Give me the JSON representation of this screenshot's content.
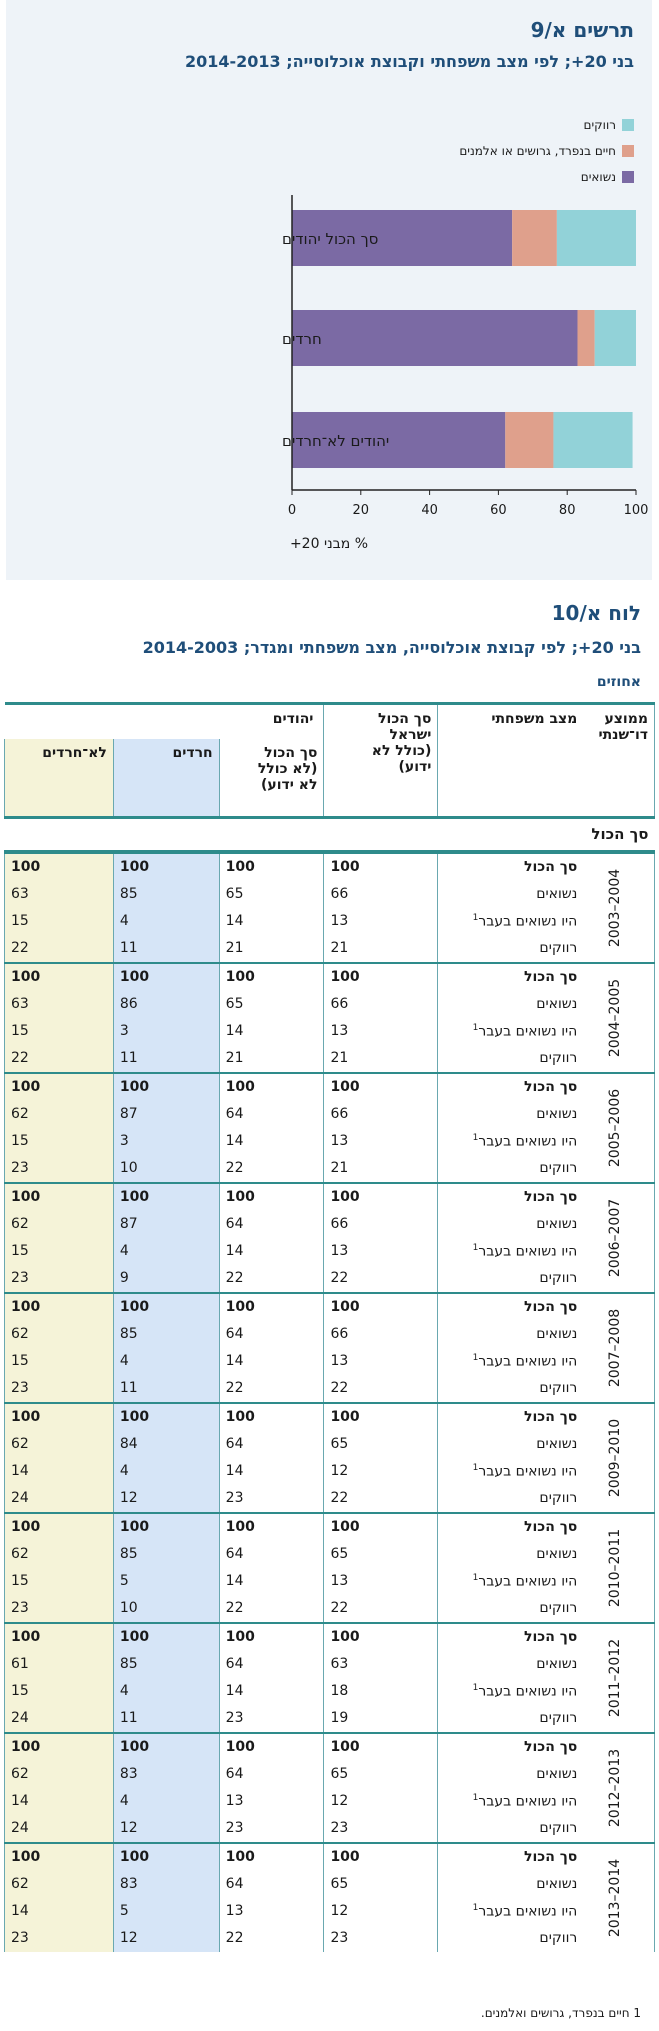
{
  "chart": {
    "title": "תרשים א/9",
    "subtitle": "בני 20+; לפי מצב משפחתי וקבוצת אוכלוסייה; 2014-2013",
    "xlabel": "% מבני 20+",
    "legend": [
      {
        "label": "רווקים",
        "color": "#92d2d8"
      },
      {
        "label": "חיים בנפרד, גרושים או אלמנים",
        "color": "#dfa08c"
      },
      {
        "label": "נשואים",
        "color": "#7b6aa4"
      }
    ]
  },
  "chart_data": {
    "type": "bar",
    "orientation": "horizontal",
    "stacked": true,
    "title": "תרשים א/9",
    "subtitle": "בני 20+; לפי מצב משפחתי וקבוצת אוכלוסייה; 2014-2013",
    "xlabel": "% מבני 20+",
    "ylabel": "",
    "xlim": [
      0,
      100
    ],
    "xticks": [
      0,
      20,
      40,
      60,
      80,
      100
    ],
    "categories": [
      "סך הכול יהודים",
      "חרדים",
      "יהודים לא־חרדים"
    ],
    "series": [
      {
        "name": "נשואים",
        "color": "#7b6aa4",
        "values": [
          64,
          83,
          62
        ]
      },
      {
        "name": "חיים בנפרד, גרושים או אלמנים",
        "color": "#dfa08c",
        "values": [
          13,
          5,
          14
        ]
      },
      {
        "name": "רווקים",
        "color": "#92d2d8",
        "values": [
          23,
          12,
          23
        ]
      }
    ],
    "legend_position": "top-right",
    "grid": false
  },
  "table": {
    "title": "לוח א/10",
    "subtitle": "בני 20+; לפי קבוצת אוכלוסייה, מצב משפחתי ומגדר; 2014-2003",
    "unit": "אחוזים",
    "headers": {
      "year": "ממוצע דו־שנתי",
      "status": "מצב משפחתי",
      "total": "סך הכול ישראל (כולל לא ידוע)",
      "jews": "יהודים",
      "jews_total": "סך הכול (לא כולל לא ידוע)",
      "haredi": "חרדים",
      "non_haredi": "לא־חרדים"
    },
    "section": "סך הכול",
    "row_labels": [
      "סך הכול",
      "נשואים",
      "היו נשואים בעבר",
      "רווקים"
    ],
    "footnote_mark": "1",
    "groups": [
      {
        "years": "2004–2003",
        "rows": [
          [
            "100",
            "100",
            "100",
            "100"
          ],
          [
            "66",
            "65",
            "85",
            "63"
          ],
          [
            "13",
            "14",
            "4",
            "15"
          ],
          [
            "21",
            "21",
            "11",
            "22"
          ]
        ]
      },
      {
        "years": "2005–2004",
        "rows": [
          [
            "100",
            "100",
            "100",
            "100"
          ],
          [
            "66",
            "65",
            "86",
            "63"
          ],
          [
            "13",
            "14",
            "3",
            "15"
          ],
          [
            "21",
            "21",
            "11",
            "22"
          ]
        ]
      },
      {
        "years": "2006–2005",
        "rows": [
          [
            "100",
            "100",
            "100",
            "100"
          ],
          [
            "66",
            "64",
            "87",
            "62"
          ],
          [
            "13",
            "14",
            "3",
            "15"
          ],
          [
            "21",
            "22",
            "10",
            "23"
          ]
        ]
      },
      {
        "years": "2007–2006",
        "rows": [
          [
            "100",
            "100",
            "100",
            "100"
          ],
          [
            "66",
            "64",
            "87",
            "62"
          ],
          [
            "13",
            "14",
            "4",
            "15"
          ],
          [
            "22",
            "22",
            "9",
            "23"
          ]
        ]
      },
      {
        "years": "2008–2007",
        "rows": [
          [
            "100",
            "100",
            "100",
            "100"
          ],
          [
            "66",
            "64",
            "85",
            "62"
          ],
          [
            "13",
            "14",
            "4",
            "15"
          ],
          [
            "22",
            "22",
            "11",
            "23"
          ]
        ]
      },
      {
        "years": "2010–2009",
        "rows": [
          [
            "100",
            "100",
            "100",
            "100"
          ],
          [
            "65",
            "64",
            "84",
            "62"
          ],
          [
            "12",
            "14",
            "4",
            "14"
          ],
          [
            "22",
            "23",
            "12",
            "24"
          ]
        ]
      },
      {
        "years": "2011–2010",
        "rows": [
          [
            "100",
            "100",
            "100",
            "100"
          ],
          [
            "65",
            "64",
            "85",
            "62"
          ],
          [
            "13",
            "14",
            "5",
            "15"
          ],
          [
            "22",
            "22",
            "10",
            "23"
          ]
        ]
      },
      {
        "years": "2012–2011",
        "rows": [
          [
            "100",
            "100",
            "100",
            "100"
          ],
          [
            "63",
            "64",
            "85",
            "61"
          ],
          [
            "18",
            "14",
            "4",
            "15"
          ],
          [
            "19",
            "23",
            "11",
            "24"
          ]
        ]
      },
      {
        "years": "2013–2012",
        "rows": [
          [
            "100",
            "100",
            "100",
            "100"
          ],
          [
            "65",
            "64",
            "83",
            "62"
          ],
          [
            "12",
            "13",
            "4",
            "14"
          ],
          [
            "23",
            "23",
            "12",
            "24"
          ]
        ]
      },
      {
        "years": "2014–2013",
        "rows": [
          [
            "100",
            "100",
            "100",
            "100"
          ],
          [
            "65",
            "64",
            "83",
            "62"
          ],
          [
            "12",
            "13",
            "5",
            "14"
          ],
          [
            "23",
            "22",
            "12",
            "23"
          ]
        ]
      }
    ],
    "footnote": "1 חיים בנפרד, גרושים ואלמנים."
  }
}
